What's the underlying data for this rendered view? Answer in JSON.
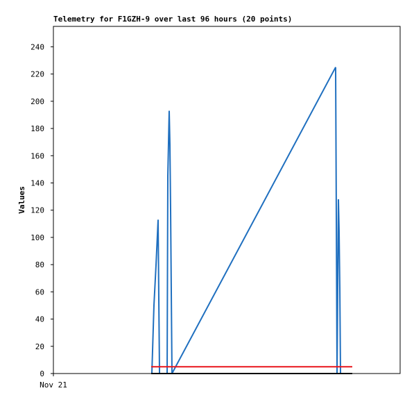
{
  "chart_data": {
    "type": "line",
    "title": "Telemetry for F1GZH-9 over last 96 hours (20 points)",
    "y_label": "Values",
    "xlim": [
      0,
      96
    ],
    "xticks": [
      {
        "value": 0,
        "label": "Nov 21"
      }
    ],
    "ylim": [
      0,
      255
    ],
    "yticks": [
      0,
      20,
      40,
      60,
      80,
      100,
      120,
      140,
      160,
      180,
      200,
      220,
      240
    ],
    "series": [
      {
        "color": "#1f6fbf",
        "x": [
          27.26,
          27.84,
          28.42,
          28.99,
          29.18,
          29.38,
          31.49,
          31.68,
          32.06,
          32.26,
          32.45,
          32.83,
          78.14,
          78.34,
          78.53,
          78.91,
          79.1,
          79.3,
          79.49,
          79.68
        ],
        "values": [
          0,
          50,
          80,
          113,
          56,
          0,
          0,
          145,
          193,
          168,
          120,
          0,
          225,
          112,
          0,
          128,
          105,
          62,
          0,
          0
        ]
      },
      {
        "color": "#e8151b",
        "x": [
          27.07,
          82.75
        ],
        "values": [
          5,
          5
        ]
      },
      {
        "color": "#000000",
        "x": [
          27.07,
          82.75
        ],
        "values": [
          0,
          0
        ]
      }
    ]
  }
}
